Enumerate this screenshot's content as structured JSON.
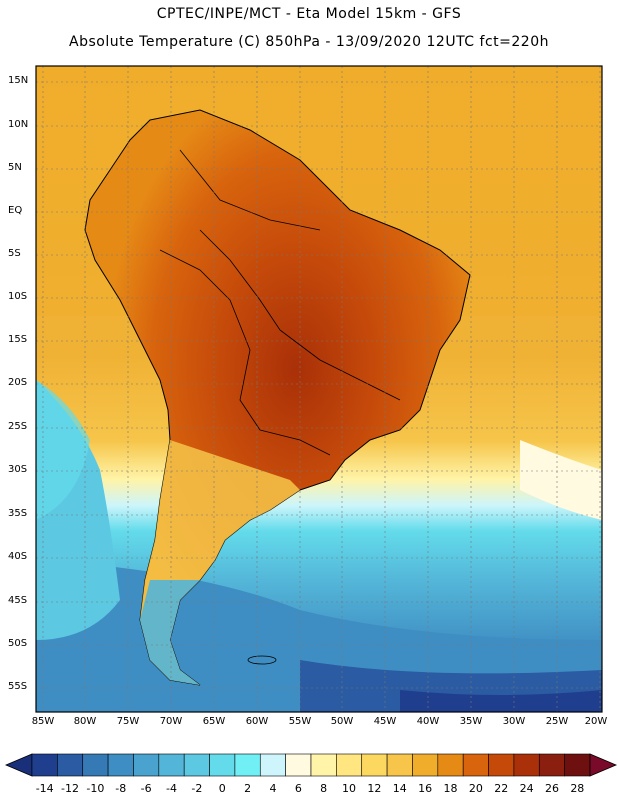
{
  "header": {
    "line1": "CPTEC/INPE/MCT -  Eta Model 15km - GFS",
    "line2": "Absolute Temperature (C) 850hPa - 13/09/2020 12UTC fct=220h"
  },
  "axes": {
    "lat_labels": [
      "15N",
      "10N",
      "5N",
      "EQ",
      "5S",
      "10S",
      "15S",
      "20S",
      "25S",
      "30S",
      "35S",
      "40S",
      "45S",
      "50S",
      "55S"
    ],
    "lon_labels": [
      "85W",
      "80W",
      "75W",
      "70W",
      "65W",
      "60W",
      "55W",
      "50W",
      "45W",
      "40W",
      "35W",
      "30W",
      "25W",
      "20W"
    ]
  },
  "colorbar": {
    "labels": [
      "-14",
      "-12",
      "-10",
      "-8",
      "-6",
      "-4",
      "-2",
      "0",
      "2",
      "4",
      "6",
      "8",
      "10",
      "12",
      "14",
      "16",
      "18",
      "20",
      "22",
      "24",
      "26",
      "28"
    ],
    "colors": [
      "#1f3f8e",
      "#2a5ba3",
      "#3579b5",
      "#3f8ec3",
      "#4aa3cf",
      "#53b5d8",
      "#5cc8e2",
      "#63dbeb",
      "#70f0f5",
      "#cdf5fb",
      "#fffae0",
      "#fff4a8",
      "#ffe680",
      "#fcd860",
      "#f6c54a",
      "#f0ad2c",
      "#e68a16",
      "#d8640d",
      "#c54a0a",
      "#a93008",
      "#8a1f10",
      "#6e1010"
    ]
  },
  "map": {
    "ocean_colors": {
      "warm": "#f0ad2c",
      "hot": "#e68a16",
      "cool": "#5cc8e2",
      "cold": "#3579b5",
      "coldest": "#1f3f8e"
    }
  }
}
